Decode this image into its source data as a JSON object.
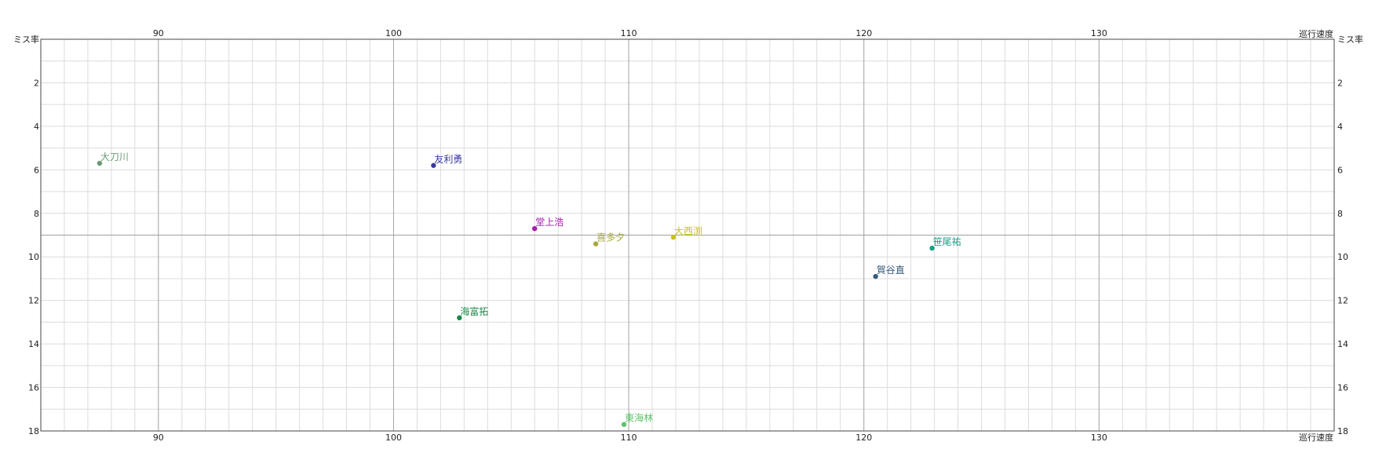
{
  "chart_data": {
    "type": "scatter",
    "title": "",
    "xlabel": "巡行速度",
    "ylabel": "ミス率",
    "xlim": [
      85,
      140
    ],
    "ylim": [
      0,
      18
    ],
    "y_inverted": true,
    "grid": true,
    "x_ticks": [
      90,
      100,
      110,
      120,
      130
    ],
    "y_ticks": [
      2,
      4,
      6,
      8,
      10,
      12,
      14,
      16,
      18
    ],
    "points": [
      {
        "label": "大刀川",
        "x": 87.5,
        "y": 5.7,
        "color": "#6b9a73"
      },
      {
        "label": "友利勇",
        "x": 101.7,
        "y": 5.8,
        "color": "#3a3aa0"
      },
      {
        "label": "堂上浩",
        "x": 106.0,
        "y": 8.7,
        "color": "#aa1ab0"
      },
      {
        "label": "喜多夕",
        "x": 108.6,
        "y": 9.4,
        "color": "#a8a840"
      },
      {
        "label": "大西渕",
        "x": 111.9,
        "y": 9.1,
        "color": "#c9c21a"
      },
      {
        "label": "笹尾祐",
        "x": 122.9,
        "y": 9.6,
        "color": "#16a087"
      },
      {
        "label": "賀谷直",
        "x": 120.5,
        "y": 10.9,
        "color": "#3a5a7a"
      },
      {
        "label": "海富拓",
        "x": 102.8,
        "y": 12.8,
        "color": "#1a8a4a"
      },
      {
        "label": "東海林",
        "x": 109.8,
        "y": 17.7,
        "color": "#5cc46c"
      }
    ]
  }
}
